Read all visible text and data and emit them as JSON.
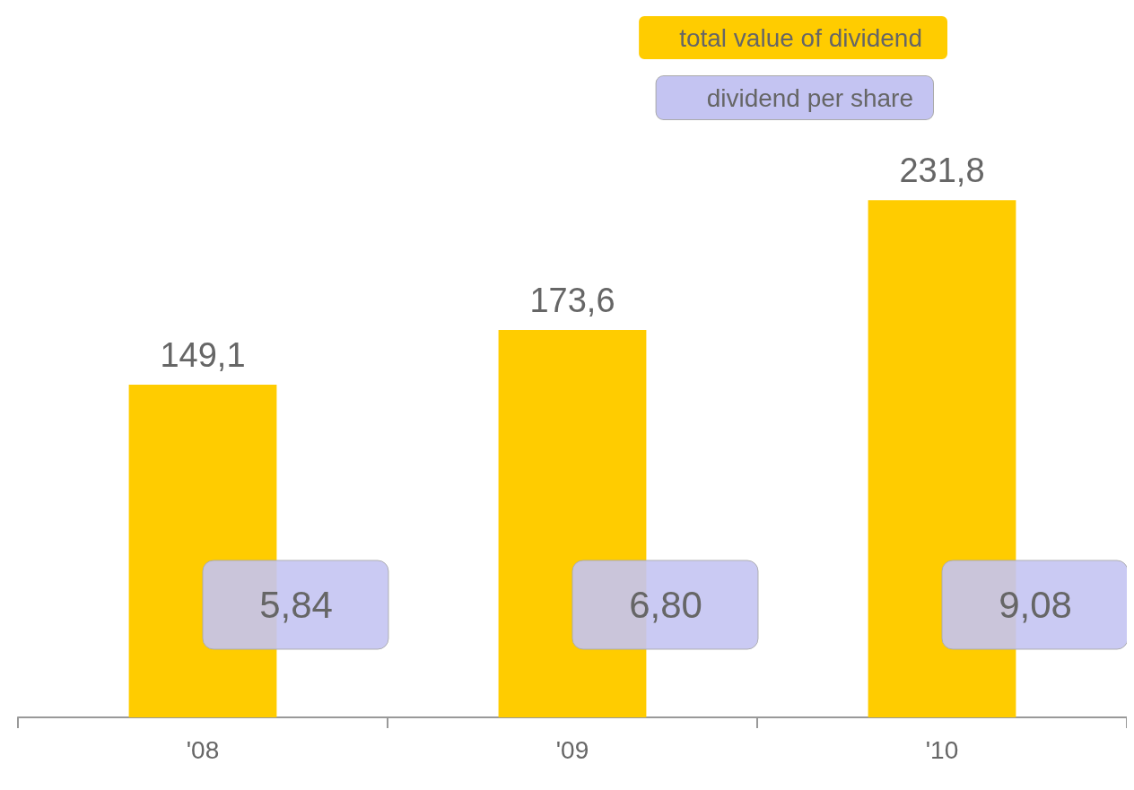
{
  "chart_data": {
    "type": "bar",
    "categories": [
      "'08",
      "'09",
      "'10"
    ],
    "series": [
      {
        "name": "total value of dividend",
        "color": "#ffcc00",
        "values": [
          149.1,
          173.6,
          231.8
        ],
        "value_labels": [
          "149,1",
          "173,6",
          "231,8"
        ]
      }
    ],
    "tick_labels": "x",
    "legend": "top right",
    "annotations": [
      "dividend per share",
      "5,84",
      "6,80",
      "9,08"
    ]
  }
}
